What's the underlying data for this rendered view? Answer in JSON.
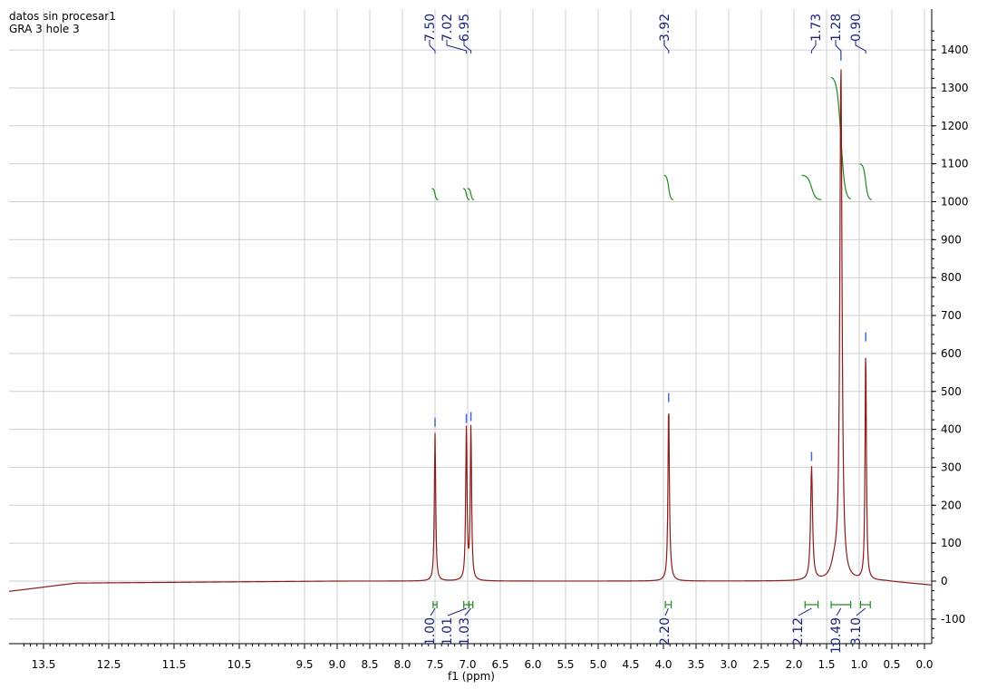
{
  "header": {
    "line1": "datos sin procesar1",
    "line2": "GRA 3  hole 3"
  },
  "chart_data": {
    "type": "line",
    "title": "datos sin procesar1",
    "subtitle": "GRA 3  hole 3",
    "xlabel": "f1 (ppm)",
    "ylabel": "",
    "x_reversed": true,
    "xlim": [
      13.9,
      -0.1
    ],
    "ylim": [
      -160,
      1500
    ],
    "xticks": [
      "13.5",
      "12.5",
      "11.5",
      "10.5",
      "9.5",
      "9.0",
      "8.5",
      "8.0",
      "7.5",
      "7.0",
      "6.5",
      "6.0",
      "5.5",
      "5.0",
      "4.5",
      "4.0",
      "3.5",
      "3.0",
      "2.5",
      "2.0",
      "1.5",
      "1.0",
      "0.5",
      "0.0"
    ],
    "yticks": [
      "-100",
      "0",
      "100",
      "200",
      "300",
      "400",
      "500",
      "600",
      "700",
      "800",
      "900",
      "1000",
      "1100",
      "1200",
      "1300",
      "1400"
    ],
    "grid": true,
    "colors": {
      "spectrum": "#8b1a1a",
      "integral": "#1e8a1e",
      "peak_label": "#1a237e",
      "peak_marker": "#4169e1",
      "grid": "#cfcfcf"
    },
    "peaks": [
      {
        "label": "7.50",
        "ppm": 7.5,
        "intensity": 390
      },
      {
        "label": "7.02",
        "ppm": 7.02,
        "intensity": 400
      },
      {
        "label": "6.95",
        "ppm": 6.95,
        "intensity": 405
      },
      {
        "label": "3.92",
        "ppm": 3.92,
        "intensity": 455
      },
      {
        "label": "1.73",
        "ppm": 1.73,
        "intensity": 300
      },
      {
        "label": "1.28",
        "ppm": 1.28,
        "intensity": 1355
      },
      {
        "label": "0.90",
        "ppm": 0.9,
        "intensity": 615
      }
    ],
    "integrals": [
      {
        "label": "1.00",
        "from": 7.53,
        "to": 7.47
      },
      {
        "label": "1.01",
        "from": 7.06,
        "to": 6.98
      },
      {
        "label": "1.03",
        "from": 6.98,
        "to": 6.92
      },
      {
        "label": "2.20",
        "from": 3.97,
        "to": 3.88
      },
      {
        "label": "2.12",
        "from": 1.83,
        "to": 1.63
      },
      {
        "label": "10.49",
        "from": 1.43,
        "to": 1.13
      },
      {
        "label": "3.10",
        "from": 0.98,
        "to": 0.83
      }
    ]
  }
}
